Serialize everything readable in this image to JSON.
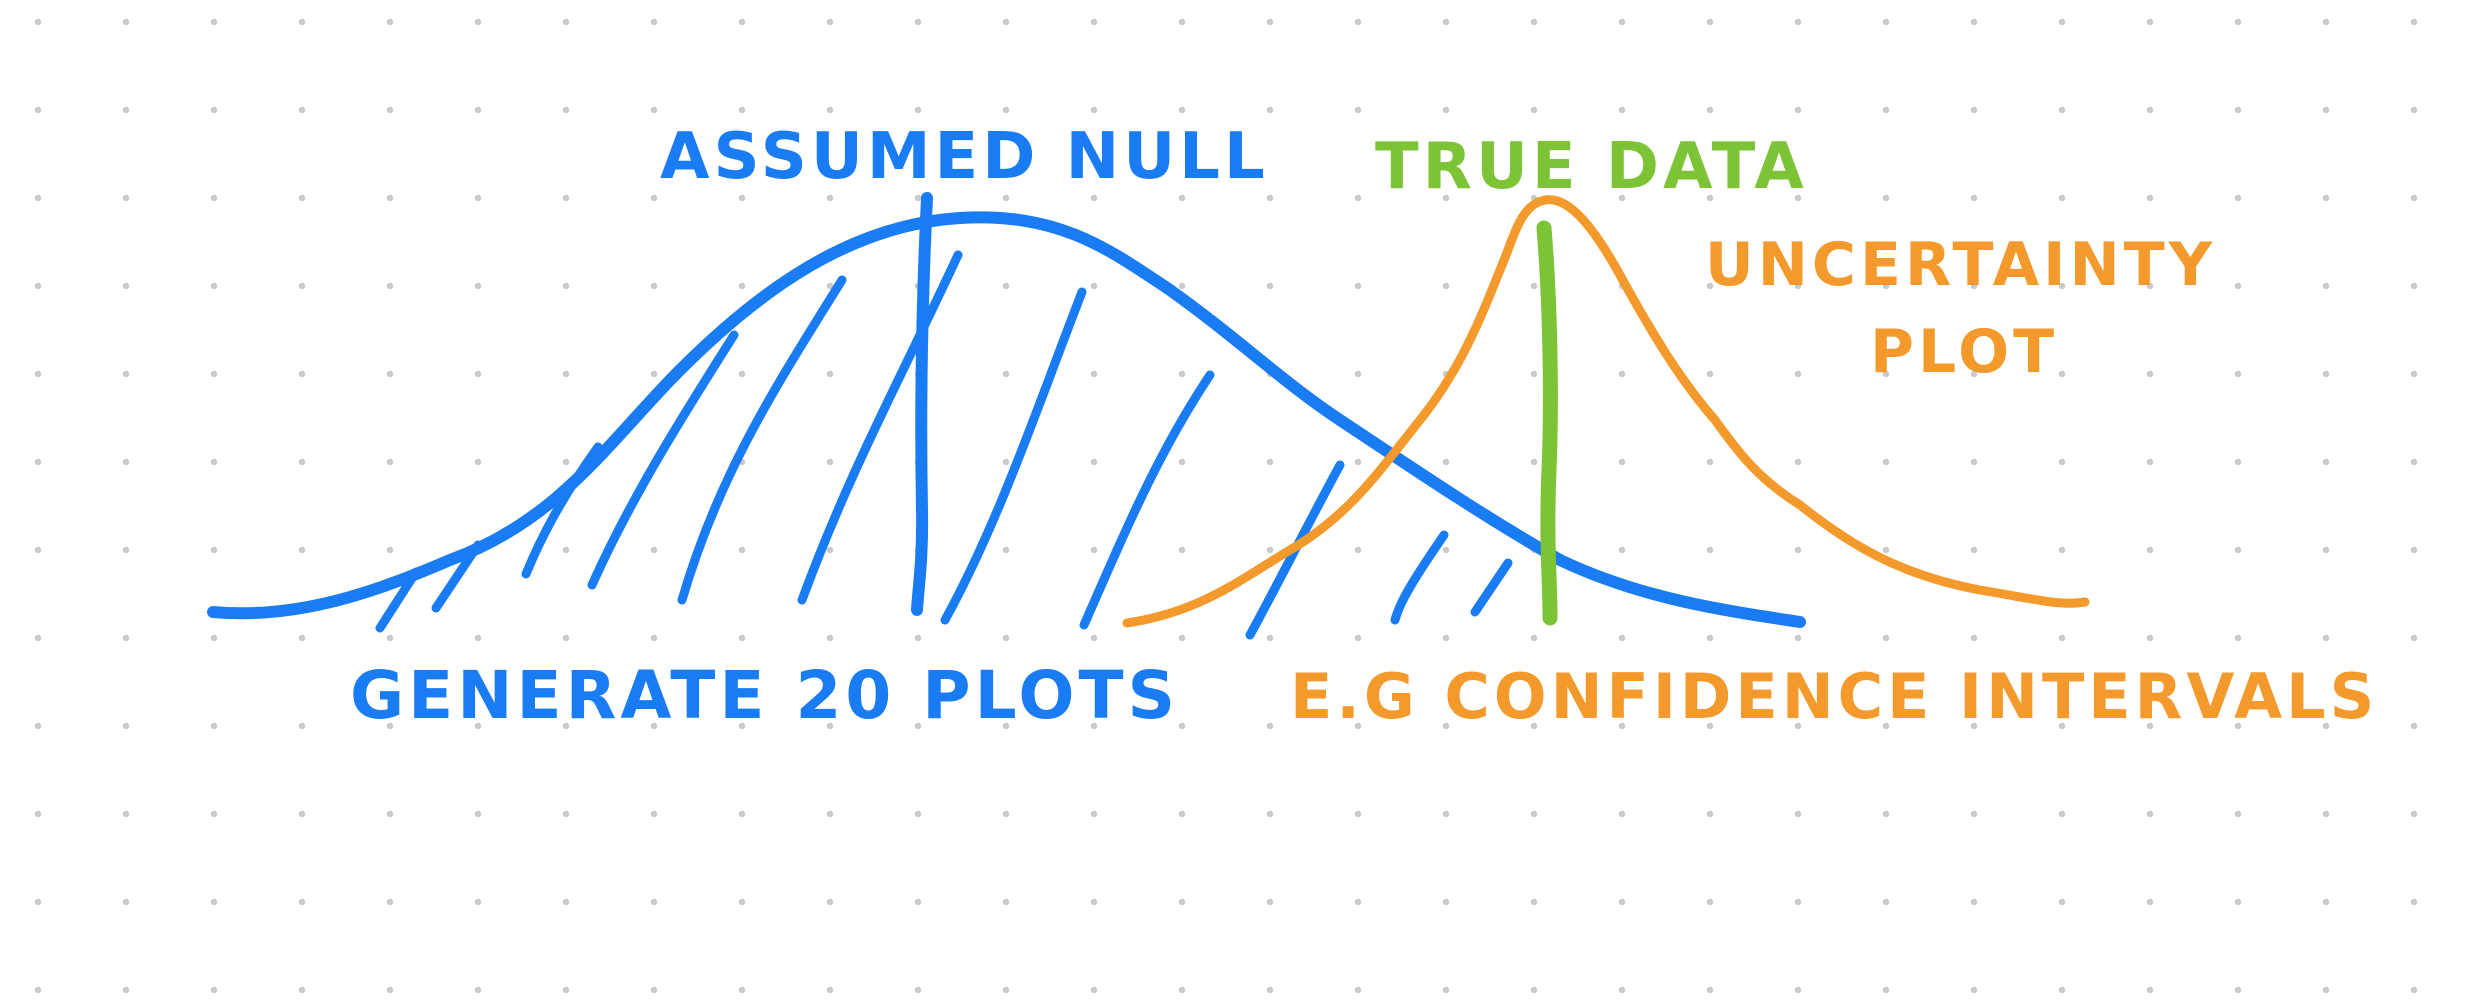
{
  "colors": {
    "background": "#ffffff",
    "grid_dot": "#c9c9c9",
    "null_blue": "#1a7cf3",
    "true_green": "#7cc436",
    "uncertainty_orange": "#f49a2c"
  },
  "labels": {
    "assumed_null": "ASSUMED NULL",
    "true_data": "TRUE DATA",
    "uncertainty_line1": "UNCERTAINTY",
    "uncertainty_line2": "PLOT",
    "generate": "GENERATE 20 PLOTS",
    "eg": "E.G CONFIDENCE INTERVALS"
  }
}
